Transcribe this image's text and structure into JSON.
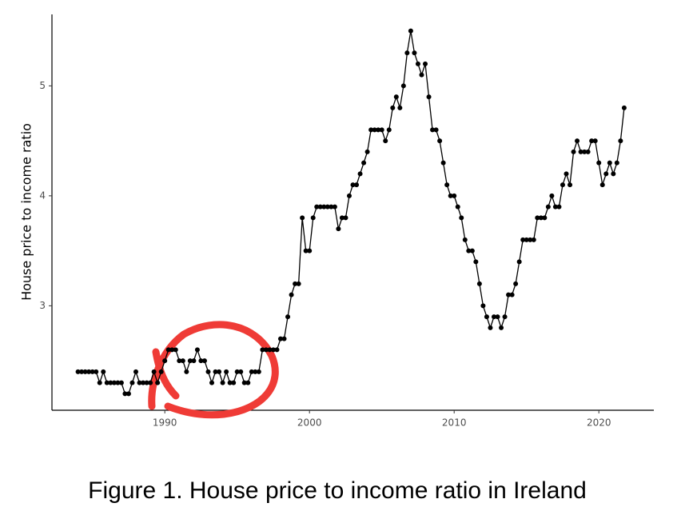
{
  "chart_data": {
    "type": "line",
    "ylabel": "House price to income ratio",
    "caption": "Figure 1. House price to income ratio in Ireland",
    "x": [
      1984,
      1984.25,
      1984.5,
      1984.75,
      1985,
      1985.25,
      1985.5,
      1985.75,
      1986,
      1986.25,
      1986.5,
      1986.75,
      1987,
      1987.25,
      1987.5,
      1987.75,
      1988,
      1988.25,
      1988.5,
      1988.75,
      1989,
      1989.25,
      1989.5,
      1989.75,
      1990,
      1990.25,
      1990.5,
      1990.75,
      1991,
      1991.25,
      1991.5,
      1991.75,
      1992,
      1992.25,
      1992.5,
      1992.75,
      1993,
      1993.25,
      1993.5,
      1993.75,
      1994,
      1994.25,
      1994.5,
      1994.75,
      1995,
      1995.25,
      1995.5,
      1995.75,
      1996,
      1996.25,
      1996.5,
      1996.75,
      1997,
      1997.25,
      1997.5,
      1997.75,
      1998,
      1998.25,
      1998.5,
      1998.75,
      1999,
      1999.25,
      1999.5,
      1999.75,
      2000,
      2000.25,
      2000.5,
      2000.75,
      2001,
      2001.25,
      2001.5,
      2001.75,
      2002,
      2002.25,
      2002.5,
      2002.75,
      2003,
      2003.25,
      2003.5,
      2003.75,
      2004,
      2004.25,
      2004.5,
      2004.75,
      2005,
      2005.25,
      2005.5,
      2005.75,
      2006,
      2006.25,
      2006.5,
      2006.75,
      2007,
      2007.25,
      2007.5,
      2007.75,
      2008,
      2008.25,
      2008.5,
      2008.75,
      2009,
      2009.25,
      2009.5,
      2009.75,
      2010,
      2010.25,
      2010.5,
      2010.75,
      2011,
      2011.25,
      2011.5,
      2011.75,
      2012,
      2012.25,
      2012.5,
      2012.75,
      2013,
      2013.25,
      2013.5,
      2013.75,
      2014,
      2014.25,
      2014.5,
      2014.75,
      2015,
      2015.25,
      2015.5,
      2015.75,
      2016,
      2016.25,
      2016.5,
      2016.75,
      2017,
      2017.25,
      2017.5,
      2017.75,
      2018,
      2018.25,
      2018.5,
      2018.75,
      2019,
      2019.25,
      2019.5,
      2019.75,
      2020,
      2020.25,
      2020.5,
      2020.75,
      2021,
      2021.25,
      2021.5,
      2021.75
    ],
    "series": [
      {
        "color": "#000000",
        "values": [
          2.4,
          2.4,
          2.4,
          2.4,
          2.4,
          2.4,
          2.3,
          2.4,
          2.3,
          2.3,
          2.3,
          2.3,
          2.3,
          2.2,
          2.2,
          2.3,
          2.4,
          2.3,
          2.3,
          2.3,
          2.3,
          2.4,
          2.3,
          2.4,
          2.5,
          2.6,
          2.6,
          2.6,
          2.5,
          2.5,
          2.4,
          2.5,
          2.5,
          2.6,
          2.5,
          2.5,
          2.4,
          2.3,
          2.4,
          2.4,
          2.3,
          2.4,
          2.3,
          2.3,
          2.4,
          2.4,
          2.3,
          2.3,
          2.4,
          2.4,
          2.4,
          2.6,
          2.6,
          2.6,
          2.6,
          2.6,
          2.7,
          2.7,
          2.9,
          3.1,
          3.2,
          3.2,
          3.8,
          3.5,
          3.5,
          3.8,
          3.9,
          3.9,
          3.9,
          3.9,
          3.9,
          3.9,
          3.7,
          3.8,
          3.8,
          4.0,
          4.1,
          4.1,
          4.2,
          4.3,
          4.4,
          4.6,
          4.6,
          4.6,
          4.6,
          4.5,
          4.6,
          4.8,
          4.9,
          4.8,
          5.0,
          5.3,
          5.5,
          5.3,
          5.2,
          5.1,
          5.2,
          4.9,
          4.6,
          4.6,
          4.5,
          4.3,
          4.1,
          4.0,
          4.0,
          3.9,
          3.8,
          3.6,
          3.5,
          3.5,
          3.4,
          3.2,
          3.0,
          2.9,
          2.8,
          2.9,
          2.9,
          2.8,
          2.9,
          3.1,
          3.1,
          3.2,
          3.4,
          3.6,
          3.6,
          3.6,
          3.6,
          3.8,
          3.8,
          3.8,
          3.9,
          4.0,
          3.9,
          3.9,
          4.1,
          4.2,
          4.1,
          4.4,
          4.5,
          4.4,
          4.4,
          4.4,
          4.5,
          4.5,
          4.3,
          4.1,
          4.2,
          4.3,
          4.2,
          4.3,
          4.5,
          4.8
        ]
      }
    ],
    "xlim": [
      1982.2,
      2023.8
    ],
    "xticks": [
      1990,
      2000,
      2010,
      2020
    ],
    "ylim": [
      2.05,
      5.65
    ],
    "yticks": [
      3,
      4,
      5
    ],
    "grid": false
  }
}
